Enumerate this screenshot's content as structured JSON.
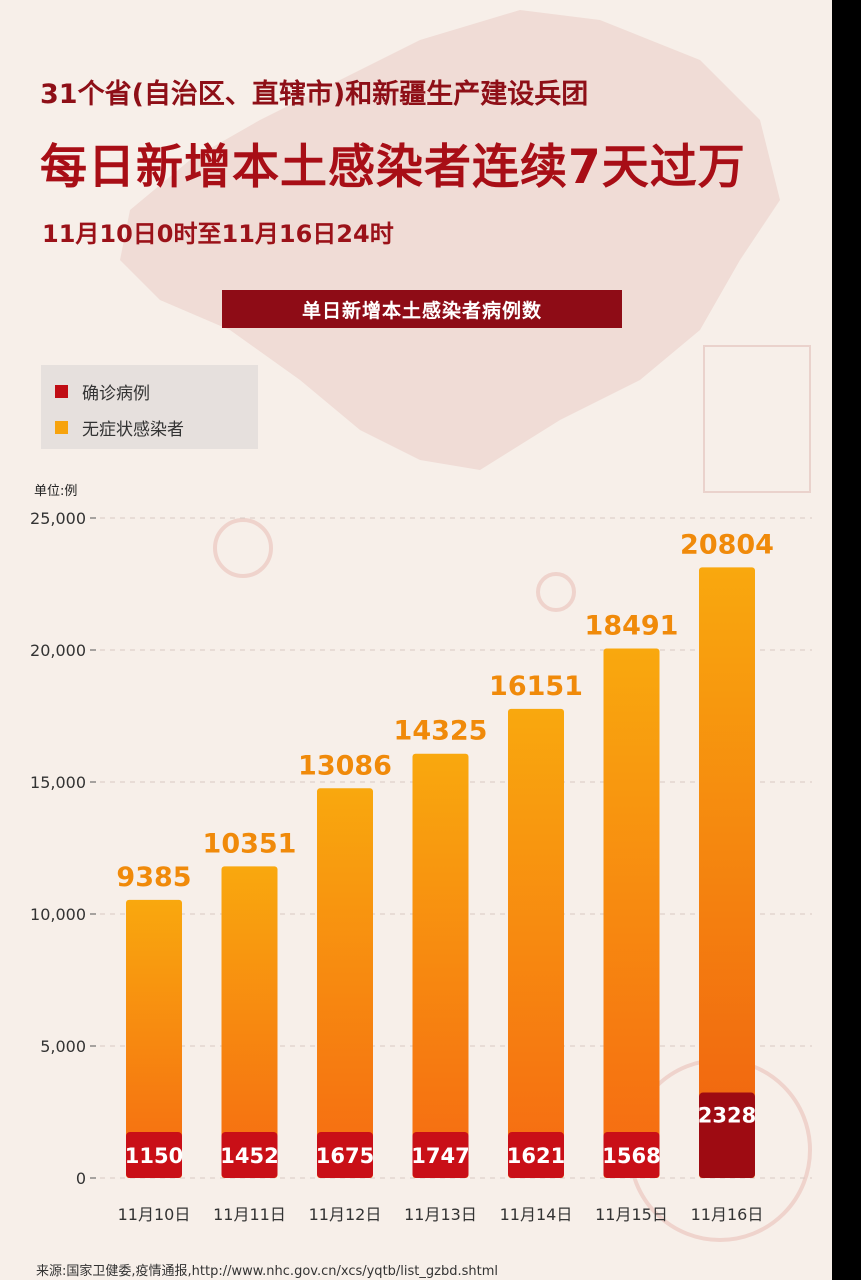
{
  "header": {
    "subtitle": "31个省(自治区、直辖市)和新疆生产建设兵团",
    "title": "每日新增本土感染者连续7天过万",
    "date_range": "11月10日0时至11月16日24时"
  },
  "banner": "单日新增本土感染者病例数",
  "legend": {
    "items": [
      {
        "label": "确诊病例",
        "color": "#c00d14"
      },
      {
        "label": "无症状感染者",
        "color": "#f7a30d"
      }
    ]
  },
  "source": "来源:国家卫健委,疫情通报,http://www.nhc.gov.cn/xcs/yqtb/list_gzbd.shtml",
  "chart_data": {
    "type": "bar",
    "stacked": true,
    "unit_label": "单位:例",
    "categories": [
      "11月10日",
      "11月11日",
      "11月12日",
      "11月13日",
      "11月14日",
      "11月15日",
      "11月16日"
    ],
    "series": [
      {
        "name": "确诊病例",
        "values": [
          1150,
          1452,
          1675,
          1747,
          1621,
          1568,
          2328
        ],
        "color": "#c00d14"
      },
      {
        "name": "无症状感染者",
        "values": [
          9385,
          10351,
          13086,
          14325,
          16151,
          18491,
          20804
        ],
        "color": "#f7a30d"
      }
    ],
    "ylim": [
      0,
      25000
    ],
    "yticks": [
      "0",
      "5,000",
      "10,000",
      "15,000",
      "20,000",
      "25,000"
    ],
    "ytick_values": [
      0,
      5000,
      10000,
      15000,
      20000,
      25000
    ],
    "grid": true
  }
}
